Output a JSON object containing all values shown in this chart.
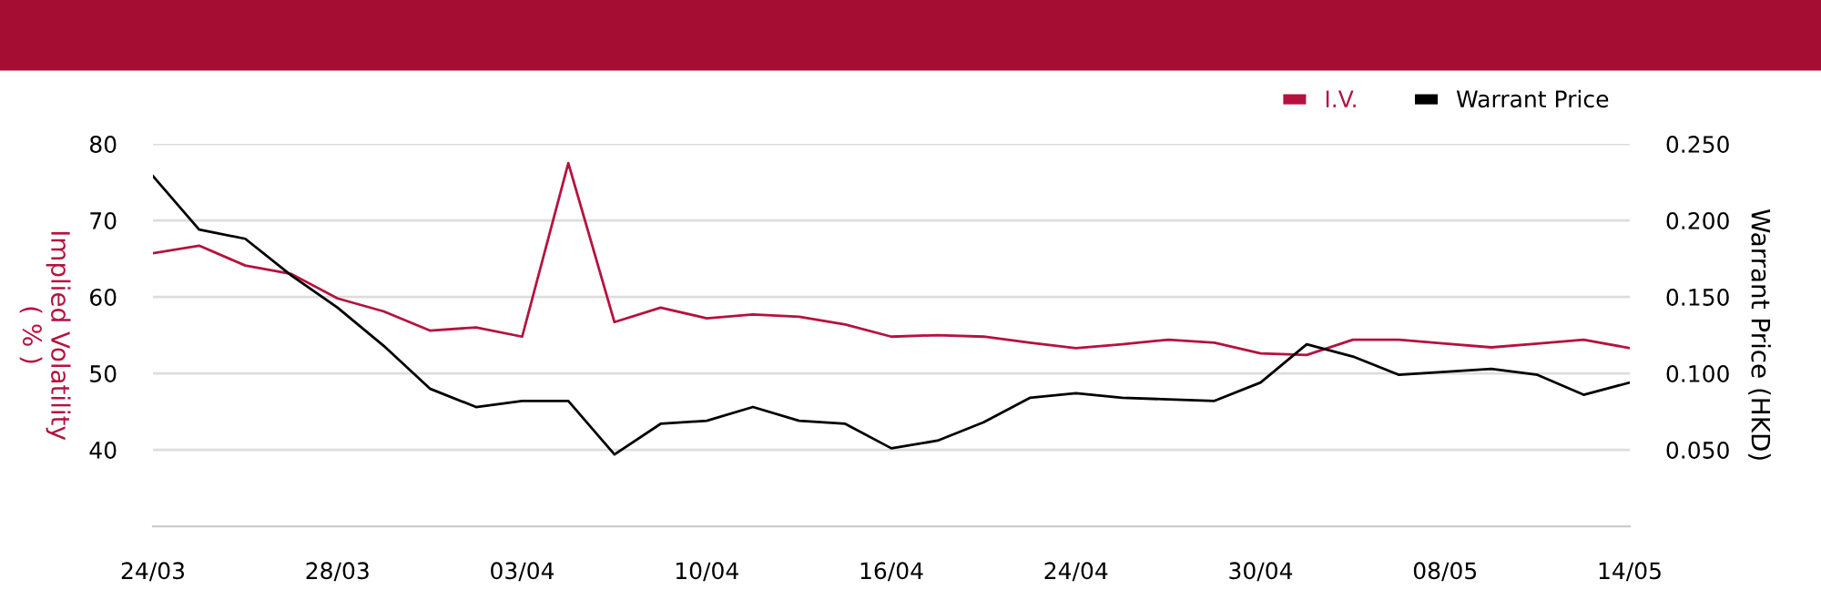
{
  "chart_data": {
    "type": "line",
    "categories": [
      "24/03",
      null,
      null,
      null,
      "28/03",
      null,
      null,
      null,
      "03/04",
      null,
      null,
      null,
      "10/04",
      null,
      null,
      null,
      "16/04",
      null,
      null,
      null,
      "24/04",
      null,
      null,
      null,
      "30/04",
      null,
      null,
      null,
      "08/05",
      null,
      null,
      null,
      "14/05"
    ],
    "series": [
      {
        "name": "I.V.",
        "color": "#b5123f",
        "values": [
          65.7,
          66.7,
          64.1,
          63.0,
          59.8,
          58.1,
          55.6,
          56.0,
          54.8,
          77.5,
          56.7,
          58.6,
          57.2,
          57.7,
          57.4,
          56.4,
          54.8,
          55.0,
          54.8,
          54.0,
          53.3,
          53.8,
          54.4,
          54.0,
          52.6,
          52.4,
          54.4,
          54.4,
          53.9,
          53.4,
          53.9,
          54.4,
          53.3
        ]
      },
      {
        "name": "Warrant Price",
        "color": "#000000",
        "axis": "y2",
        "values": [
          0.229,
          0.194,
          0.188,
          0.164,
          0.143,
          0.118,
          0.09,
          0.078,
          0.082,
          0.082,
          0.047,
          0.067,
          0.069,
          0.078,
          0.069,
          0.067,
          0.051,
          0.056,
          0.068,
          0.084,
          0.087,
          0.084,
          0.083,
          0.082,
          0.094,
          0.119,
          0.111,
          0.099,
          0.101,
          0.103,
          0.099,
          0.086,
          0.094
        ]
      }
    ],
    "ylabel": "Implied Volatility\n( % )",
    "y2label": "Warrant Price (HKD)",
    "ylim": [
      30,
      80
    ],
    "yticks": [
      40,
      50,
      60,
      70,
      80
    ],
    "y2lim": [
      0,
      0.25
    ],
    "y2ticks": [
      {
        "value": 0.05,
        "label": "0.050"
      },
      {
        "value": 0.1,
        "label": "0.100"
      },
      {
        "value": 0.15,
        "label": "0.150"
      },
      {
        "value": 0.2,
        "label": "0.200"
      },
      {
        "value": 0.25,
        "label": "0.250"
      }
    ],
    "grid": "y",
    "legend": "top right",
    "marker": "none",
    "line_style": "solid"
  }
}
